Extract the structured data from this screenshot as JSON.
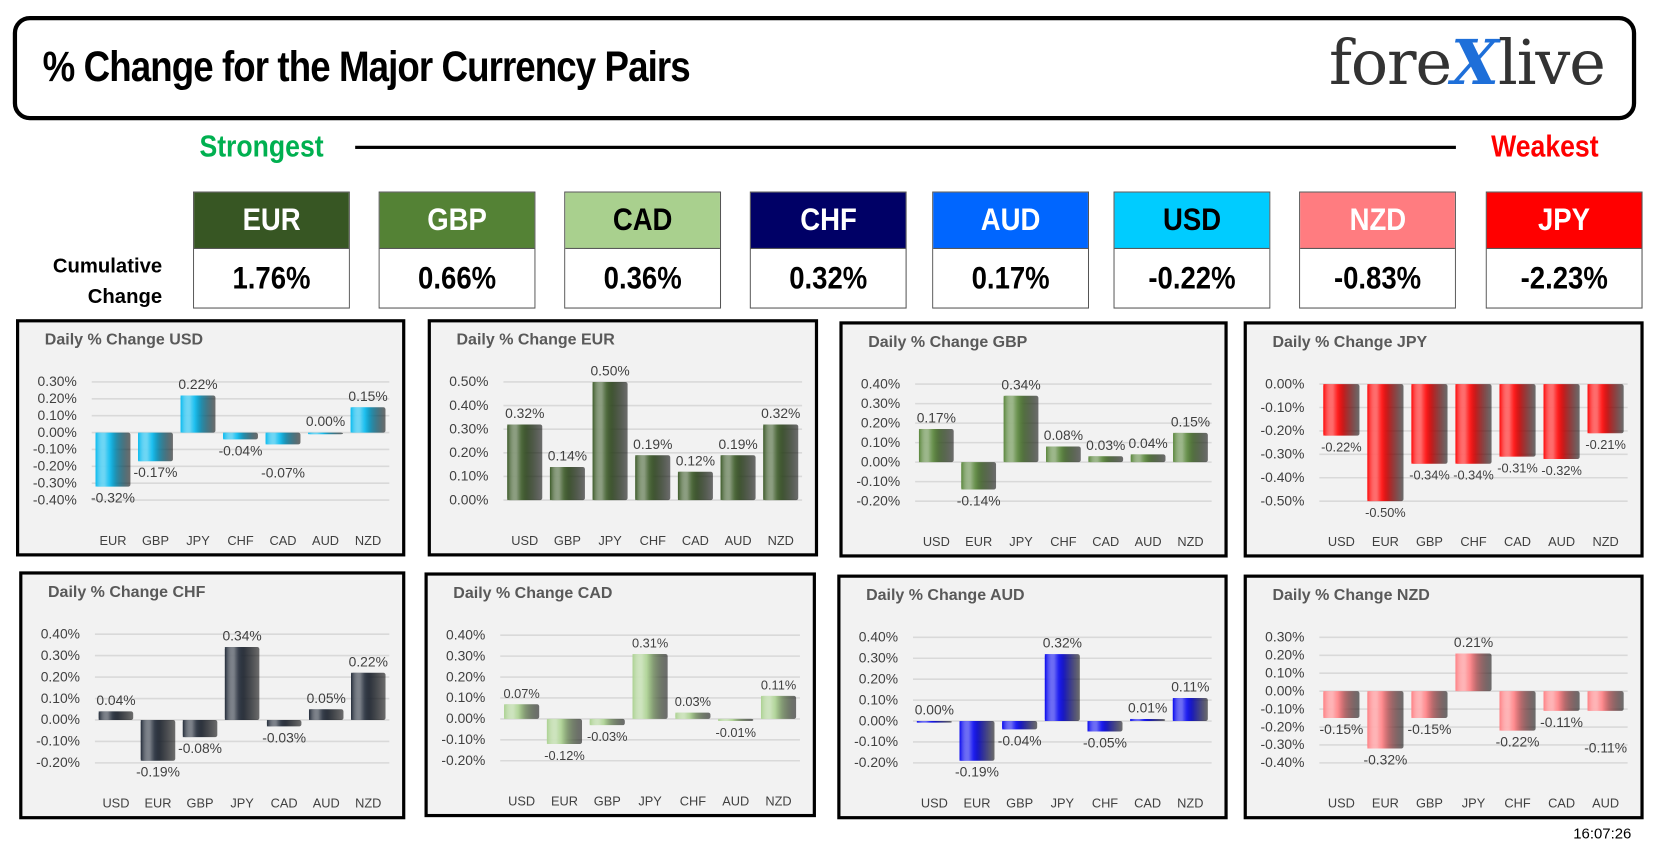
{
  "header": {
    "title": "% Change for the Major Currency Pairs",
    "logo": {
      "part1": "fore",
      "x": "X",
      "part2": "live"
    }
  },
  "scale": {
    "strongest": "Strongest",
    "weakest": "Weakest"
  },
  "cumulative": {
    "label_line1": "Cumulative",
    "label_line2": "Change",
    "items": [
      {
        "currency": "EUR",
        "value": "1.76%",
        "color": "#375623",
        "text_color": "#ffffff"
      },
      {
        "currency": "GBP",
        "value": "0.66%",
        "color": "#548235",
        "text_color": "#ffffff"
      },
      {
        "currency": "CAD",
        "value": "0.36%",
        "color": "#a9d08e",
        "text_color": "#000000"
      },
      {
        "currency": "CHF",
        "value": "0.32%",
        "color": "#000066",
        "text_color": "#ffffff"
      },
      {
        "currency": "AUD",
        "value": "0.17%",
        "color": "#0066ff",
        "text_color": "#ffffff"
      },
      {
        "currency": "USD",
        "value": "-0.22%",
        "color": "#00ccff",
        "text_color": "#000000"
      },
      {
        "currency": "NZD",
        "value": "-0.83%",
        "color": "#ff7c80",
        "text_color": "#ffffff"
      },
      {
        "currency": "JPY",
        "value": "-2.23%",
        "color": "#ff0000",
        "text_color": "#ffffff"
      }
    ]
  },
  "timestamp": "16:07:26",
  "chart_data": [
    {
      "type": "bar",
      "title": "Daily % Change USD",
      "color": "#00b8ee",
      "categories": [
        "EUR",
        "GBP",
        "JPY",
        "CHF",
        "CAD",
        "AUD",
        "NZD"
      ],
      "values": [
        -0.32,
        -0.17,
        0.22,
        -0.04,
        -0.07,
        0.0,
        0.15
      ],
      "labels": [
        "-0.32%",
        "-0.17%",
        "0.22%",
        "-0.04%",
        "-0.07%",
        "0.00%",
        "0.15%"
      ],
      "ylim": [
        -0.4,
        0.3
      ],
      "yticks": [
        "0.30%",
        "0.20%",
        "0.10%",
        "0.00%",
        "-0.10%",
        "-0.20%",
        "-0.30%",
        "-0.40%"
      ],
      "grid": true
    },
    {
      "type": "bar",
      "title": "Daily % Change EUR",
      "color": "#375623",
      "categories": [
        "USD",
        "GBP",
        "JPY",
        "CHF",
        "CAD",
        "AUD",
        "NZD"
      ],
      "values": [
        0.32,
        0.14,
        0.5,
        0.19,
        0.12,
        0.19,
        0.32
      ],
      "labels": [
        "0.32%",
        "0.14%",
        "0.50%",
        "0.19%",
        "0.12%",
        "0.19%",
        "0.32%"
      ],
      "ylim": [
        0,
        0.5
      ],
      "yticks": [
        "0.50%",
        "0.40%",
        "0.30%",
        "0.20%",
        "0.10%",
        "0.00%"
      ],
      "grid": true
    },
    {
      "type": "bar",
      "title": "Daily % Change GBP",
      "color": "#548235",
      "categories": [
        "USD",
        "EUR",
        "JPY",
        "CHF",
        "CAD",
        "AUD",
        "NZD"
      ],
      "values": [
        0.17,
        -0.14,
        0.34,
        0.08,
        0.03,
        0.04,
        0.15
      ],
      "labels": [
        "0.17%",
        "-0.14%",
        "0.34%",
        "0.08%",
        "0.03%",
        "0.04%",
        "0.15%"
      ],
      "ylim": [
        -0.2,
        0.4
      ],
      "yticks": [
        "0.40%",
        "0.30%",
        "0.20%",
        "0.10%",
        "0.00%",
        "-0.10%",
        "-0.20%"
      ],
      "grid": true
    },
    {
      "type": "bar",
      "title": "Daily % Change JPY",
      "color": "#ff0000",
      "categories": [
        "USD",
        "EUR",
        "GBP",
        "CHF",
        "CAD",
        "AUD",
        "NZD"
      ],
      "values": [
        -0.22,
        -0.5,
        -0.34,
        -0.34,
        -0.31,
        -0.32,
        -0.21
      ],
      "labels": [
        "-0.22%",
        "-0.50%",
        "-0.34%",
        "-0.34%",
        "-0.31%",
        "-0.32%",
        "-0.21%"
      ],
      "ylim": [
        -0.5,
        0
      ],
      "yticks": [
        "0.00%",
        "-0.10%",
        "-0.20%",
        "-0.30%",
        "-0.40%",
        "-0.50%"
      ],
      "grid": true
    },
    {
      "type": "bar",
      "title": "Daily % Change CHF",
      "color": "#1c2533",
      "categories": [
        "USD",
        "EUR",
        "GBP",
        "JPY",
        "CAD",
        "AUD",
        "NZD"
      ],
      "values": [
        0.04,
        -0.19,
        -0.08,
        0.34,
        -0.03,
        0.05,
        0.22
      ],
      "labels": [
        "0.04%",
        "-0.19%",
        "-0.08%",
        "0.34%",
        "-0.03%",
        "0.05%",
        "0.22%"
      ],
      "ylim": [
        -0.2,
        0.4
      ],
      "yticks": [
        "0.40%",
        "0.30%",
        "0.20%",
        "0.10%",
        "0.00%",
        "-0.10%",
        "-0.20%"
      ],
      "grid": true
    },
    {
      "type": "bar",
      "title": "Daily % Change CAD",
      "color": "#a9d08e",
      "categories": [
        "USD",
        "EUR",
        "GBP",
        "JPY",
        "CHF",
        "AUD",
        "NZD"
      ],
      "values": [
        0.07,
        -0.12,
        -0.03,
        0.31,
        0.03,
        -0.01,
        0.11
      ],
      "labels": [
        "0.07%",
        "-0.12%",
        "-0.03%",
        "0.31%",
        "0.03%",
        "-0.01%",
        "0.11%"
      ],
      "ylim": [
        -0.2,
        0.4
      ],
      "yticks": [
        "0.40%",
        "0.30%",
        "0.20%",
        "0.10%",
        "0.00%",
        "-0.10%",
        "-0.20%"
      ],
      "grid": true
    },
    {
      "type": "bar",
      "title": "Daily % Change AUD",
      "color": "#0000ee",
      "categories": [
        "USD",
        "EUR",
        "GBP",
        "JPY",
        "CHF",
        "CAD",
        "NZD"
      ],
      "values": [
        0.0,
        -0.19,
        -0.04,
        0.32,
        -0.05,
        0.01,
        0.11
      ],
      "labels": [
        "0.00%",
        "-0.19%",
        "-0.04%",
        "0.32%",
        "-0.05%",
        "0.01%",
        "0.11%"
      ],
      "ylim": [
        -0.2,
        0.4
      ],
      "yticks": [
        "0.40%",
        "0.30%",
        "0.20%",
        "0.10%",
        "0.00%",
        "-0.10%",
        "-0.20%"
      ],
      "grid": true
    },
    {
      "type": "bar",
      "title": "Daily % Change NZD",
      "color": "#ff7c80",
      "categories": [
        "USD",
        "EUR",
        "GBP",
        "JPY",
        "CHF",
        "CAD",
        "AUD"
      ],
      "values": [
        -0.15,
        -0.32,
        -0.15,
        0.21,
        -0.22,
        -0.11,
        -0.11
      ],
      "labels": [
        "-0.15%",
        "-0.32%",
        "-0.15%",
        "0.21%",
        "-0.22%",
        "-0.11%",
        "-0.11%"
      ],
      "ylim": [
        -0.4,
        0.3
      ],
      "yticks": [
        "0.30%",
        "0.20%",
        "0.10%",
        "0.00%",
        "-0.10%",
        "-0.20%",
        "-0.30%",
        "-0.40%"
      ],
      "grid": true
    }
  ]
}
